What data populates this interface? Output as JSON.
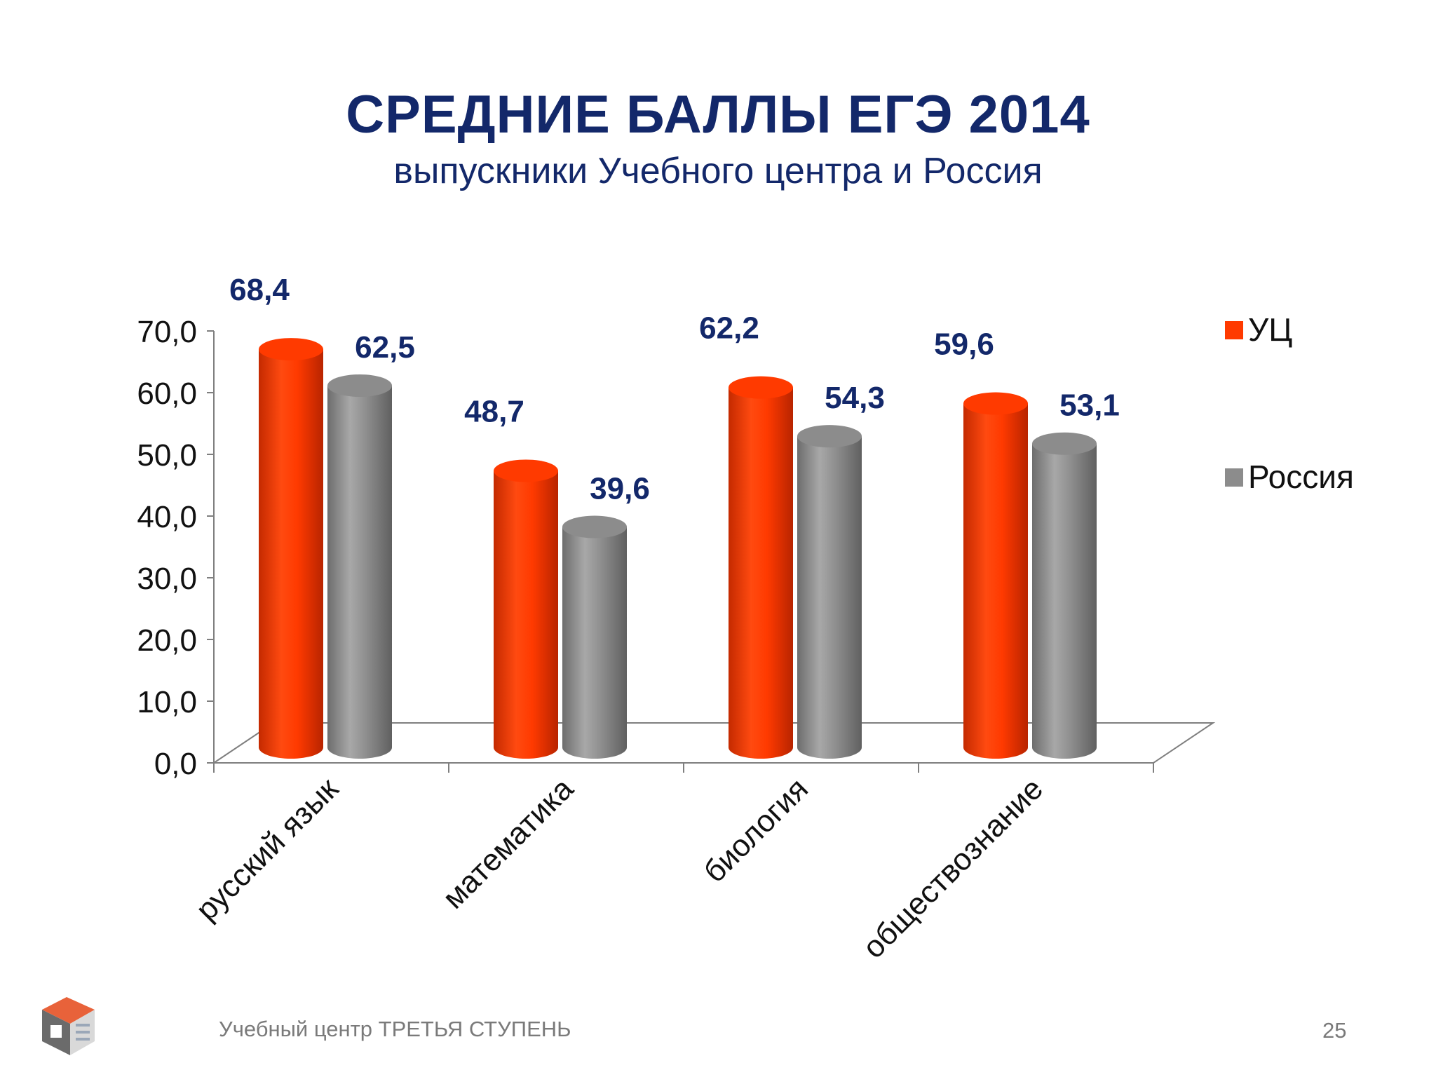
{
  "slide": {
    "title": "СРЕДНИЕ БАЛЛЫ ЕГЭ 2014",
    "subtitle": "выпускники Учебного центра и Россия",
    "footer": "Учебный центр ТРЕТЬЯ СТУПЕНЬ",
    "page_number": "25"
  },
  "colors": {
    "title": "#13286a",
    "uc": "#ff3a00",
    "russia": "#8c8c8c",
    "data_label": "#13286a"
  },
  "chart_data": {
    "type": "bar",
    "categories": [
      "русский язык",
      "математика",
      "биология",
      "обществознание"
    ],
    "series": [
      {
        "name": "УЦ",
        "values": [
          68.4,
          48.7,
          62.2,
          59.6
        ],
        "labels": [
          "68,4",
          "48,7",
          "62,2",
          "59,6"
        ],
        "color": "#ff3a00"
      },
      {
        "name": "Россия",
        "values": [
          62.5,
          39.6,
          54.3,
          53.1
        ],
        "labels": [
          "62,5",
          "39,6",
          "54,3",
          "53,1"
        ],
        "color": "#8c8c8c"
      }
    ],
    "y_ticks": [
      "0,0",
      "10,0",
      "20,0",
      "30,0",
      "40,0",
      "50,0",
      "60,0",
      "70,0"
    ],
    "ylim": [
      0,
      70
    ],
    "legend_position": "right",
    "grid": false,
    "style": "3d-cylinder"
  }
}
